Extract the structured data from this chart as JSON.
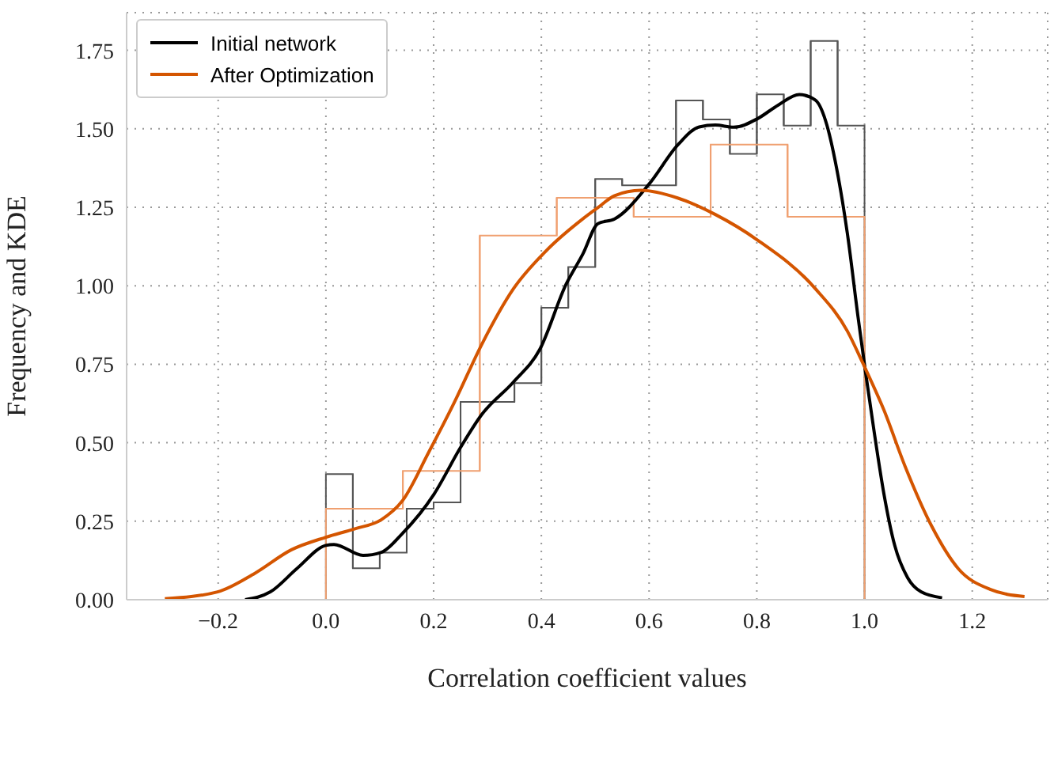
{
  "chart_data": {
    "type": "histogram",
    "xlabel": "Correlation coefficient values",
    "ylabel": "Frequency and KDE",
    "xlim": [
      -0.37,
      1.34
    ],
    "xticks": [
      {
        "value": -0.2,
        "label": "−0.2"
      },
      {
        "value": 0,
        "label": "0.0"
      },
      {
        "value": 0.2,
        "label": "0.2"
      },
      {
        "value": 0.4,
        "label": "0.4"
      },
      {
        "value": 0.6,
        "label": "0.6"
      },
      {
        "value": 0.8,
        "label": "0.8"
      },
      {
        "value": 1,
        "label": "1.0"
      },
      {
        "value": 1.2,
        "label": "1.2"
      }
    ],
    "ylim": [
      0,
      1.87
    ],
    "yticks": [
      {
        "value": 0,
        "label": "0.00"
      },
      {
        "value": 0.25,
        "label": "0.25"
      },
      {
        "value": 0.5,
        "label": "0.50"
      },
      {
        "value": 0.75,
        "label": "0.75"
      },
      {
        "value": 1,
        "label": "1.00"
      },
      {
        "value": 1.25,
        "label": "1.25"
      },
      {
        "value": 1.5,
        "label": "1.50"
      },
      {
        "value": 1.75,
        "label": "1.75"
      }
    ],
    "grid": true,
    "legend": "top left",
    "series": [
      {
        "type": "histogram",
        "color": "#555555",
        "bins": [
          0,
          0.05,
          0.1,
          0.15,
          0.2,
          0.25,
          0.3,
          0.35,
          0.4,
          0.45,
          0.5,
          0.55,
          0.6,
          0.65,
          0.7,
          0.75,
          0.8,
          0.85,
          0.9,
          0.95,
          1
        ],
        "values": [
          0.4,
          0.1,
          0.15,
          0.29,
          0.31,
          0.63,
          0.63,
          0.69,
          0.93,
          1.06,
          1.34,
          1.32,
          1.32,
          1.59,
          1.53,
          1.42,
          1.61,
          1.51,
          1.78,
          1.51
        ]
      },
      {
        "type": "histogram",
        "color": "#f0a070",
        "bins": [
          0,
          0.1429,
          0.2857,
          0.4286,
          0.5714,
          0.7143,
          0.8571,
          1
        ],
        "values": [
          0.29,
          0.41,
          1.16,
          1.28,
          1.22,
          1.45,
          1.22
        ]
      },
      {
        "type": "line",
        "name": "Initial network",
        "color": "#000000",
        "x": [
          -0.15,
          -0.103,
          -0.054,
          0,
          0.015,
          0.069,
          0.103,
          0.142,
          0.201,
          0.25,
          0.289,
          0.348,
          0.397,
          0.446,
          0.477,
          0.505,
          0.536,
          0.6,
          0.654,
          0.693,
          0.723,
          0.757,
          0.801,
          0.84,
          0.879,
          0.909,
          0.928,
          0.948,
          0.968,
          0.988,
          1.002,
          1.017,
          1.036,
          1.056,
          1.08,
          1.105,
          1.144
        ],
        "values": [
          0,
          0.025,
          0.099,
          0.173,
          0.176,
          0.141,
          0.151,
          0.211,
          0.337,
          0.485,
          0.589,
          0.693,
          0.797,
          1.005,
          1.101,
          1.198,
          1.213,
          1.324,
          1.45,
          1.506,
          1.512,
          1.505,
          1.532,
          1.576,
          1.609,
          1.591,
          1.524,
          1.376,
          1.168,
          0.9,
          0.723,
          0.545,
          0.337,
          0.173,
          0.07,
          0.025,
          0.006
        ]
      },
      {
        "type": "line",
        "name": "After Optimization",
        "color": "#d45500",
        "x": [
          -0.299,
          -0.201,
          -0.132,
          -0.064,
          0,
          0.054,
          0.103,
          0.142,
          0.191,
          0.24,
          0.289,
          0.348,
          0.407,
          0.477,
          0.505,
          0.536,
          0.585,
          0.654,
          0.723,
          0.801,
          0.909,
          0.968,
          0.997,
          1.036,
          1.075,
          1.125,
          1.174,
          1.233,
          1.297
        ],
        "values": [
          0.003,
          0.025,
          0.084,
          0.159,
          0.199,
          0.226,
          0.255,
          0.315,
          0.47,
          0.634,
          0.812,
          0.99,
          1.108,
          1.213,
          1.249,
          1.287,
          1.304,
          1.279,
          1.227,
          1.146,
          0.99,
          0.856,
          0.753,
          0.604,
          0.426,
          0.233,
          0.099,
          0.033,
          0.01
        ]
      }
    ]
  }
}
